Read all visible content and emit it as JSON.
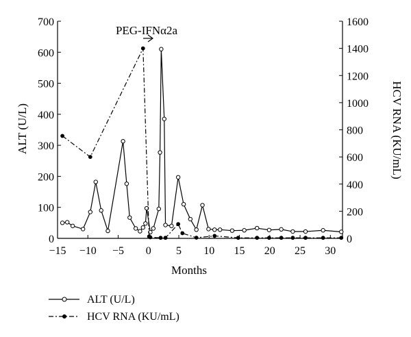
{
  "chart_data": {
    "type": "line",
    "annotation": "PEG-IFNα2a",
    "x_axis": {
      "label": "Months",
      "min": -15,
      "max": 32,
      "ticks": [
        -15,
        -10,
        -5,
        0,
        5,
        10,
        15,
        20,
        25,
        30
      ],
      "tick_labels": [
        "−15",
        "−10",
        "−5",
        "0",
        "5",
        "10",
        "15",
        "20",
        "25",
        "30"
      ]
    },
    "y_left": {
      "label": "ALT (U/L)",
      "min": 0,
      "max": 700,
      "ticks": [
        0,
        100,
        200,
        300,
        400,
        500,
        600,
        700
      ],
      "tick_labels": [
        "0",
        "100",
        "200",
        "300",
        "400",
        "500",
        "600",
        "700"
      ]
    },
    "y_right": {
      "label": "HCV RNA (KU/mL)",
      "min": 0,
      "max": 1600,
      "ticks": [
        0,
        200,
        400,
        600,
        800,
        1000,
        1200,
        1400,
        1600
      ],
      "tick_labels": [
        "0",
        "200",
        "400",
        "600",
        "800",
        "1000",
        "1200",
        "1400",
        "1600"
      ]
    },
    "series": [
      {
        "name": "ALT (U/L)",
        "axis": "left",
        "line_style": "solid",
        "marker": "open-circle",
        "x": [
          -14.2,
          -13.4,
          -12.5,
          -10.8,
          -9.6,
          -8.7,
          -7.8,
          -6.7,
          -4.2,
          -3.6,
          -3.1,
          -2.1,
          -1.4,
          -0.9,
          -0.5,
          -0.3,
          0.3,
          0.8,
          1.7,
          1.9,
          2.1,
          2.6,
          2.8,
          3.8,
          4.9,
          5.8,
          6.9,
          7.9,
          8.9,
          9.9,
          10.9,
          11.8,
          13.8,
          15.8,
          17.9,
          19.9,
          21.9,
          23.8,
          25.9,
          28.8,
          31.8
        ],
        "y": [
          50,
          52,
          40,
          30,
          85,
          182,
          90,
          24,
          313,
          176,
          67,
          32,
          23,
          35,
          48,
          97,
          20,
          32,
          95,
          277,
          610,
          385,
          43,
          40,
          197,
          110,
          62,
          28,
          107,
          30,
          28,
          28,
          25,
          26,
          33,
          27,
          29,
          22,
          22,
          26,
          21
        ]
      },
      {
        "name": "HCV RNA (KU/mL)",
        "axis": "right",
        "line_style": "dash-dot",
        "marker": "filled-circle",
        "x": [
          -14.2,
          -9.6,
          -0.9,
          0.1,
          0.3,
          2.0,
          2.8,
          4.9,
          5.6,
          7.9,
          10.9,
          14.8,
          17.9,
          19.9,
          21.9,
          23.8,
          25.9,
          28.8,
          31.8
        ],
        "y": [
          755,
          600,
          1400,
          14,
          8,
          4,
          4,
          105,
          38,
          5,
          18,
          4,
          4,
          4,
          4,
          4,
          4,
          4,
          4
        ]
      }
    ],
    "legend": {
      "position": "bottom-left",
      "entries": [
        "ALT (U/L)",
        "HCV RNA (KU/mL)"
      ]
    }
  }
}
